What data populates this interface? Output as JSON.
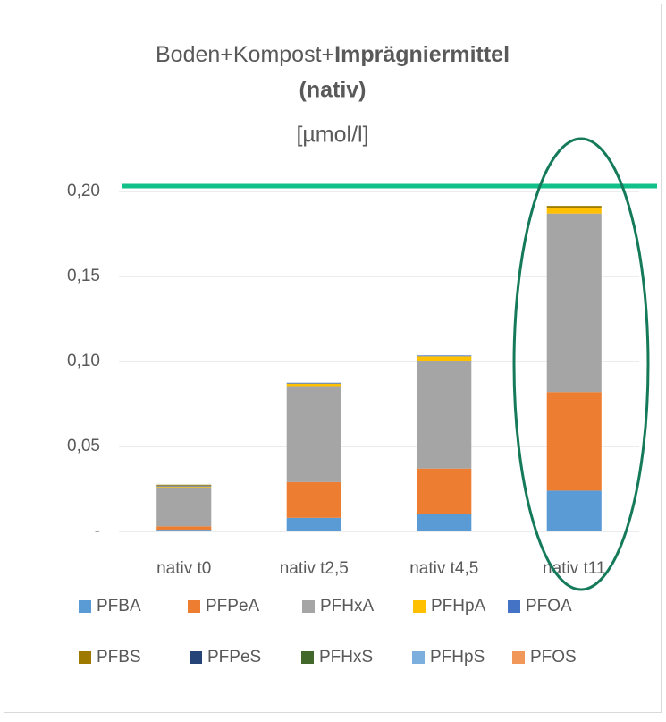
{
  "chart_data": {
    "type": "stacked_bar",
    "title": [
      "Boden+Kompost+",
      "Imprägniermittel",
      "(nativ)"
    ],
    "subtitle": "[µmol/l]",
    "categories": [
      "nativ t0",
      "nativ t2,5",
      "nativ t4,5",
      "nativ t11"
    ],
    "series": [
      {
        "name": "PFBA",
        "color": "#5b9bd5",
        "values": [
          0.001,
          0.008,
          0.01,
          0.024
        ]
      },
      {
        "name": "PFPeA",
        "color": "#ed7d31",
        "values": [
          0.002,
          0.021,
          0.027,
          0.058
        ]
      },
      {
        "name": "PFHxA",
        "color": "#a5a5a5",
        "values": [
          0.023,
          0.056,
          0.063,
          0.105
        ]
      },
      {
        "name": "PFHpA",
        "color": "#ffc000",
        "values": [
          0.0005,
          0.002,
          0.003,
          0.003
        ]
      },
      {
        "name": "PFOA",
        "color": "#4472c4",
        "values": [
          0.0005,
          0.0005,
          0.0005,
          0.0005
        ]
      },
      {
        "name": "PFBS",
        "color": "#9e7a00",
        "values": [
          0.0005,
          0,
          0,
          0.001
        ]
      },
      {
        "name": "PFPeS",
        "color": "#264478",
        "values": [
          0,
          0,
          0,
          0
        ]
      },
      {
        "name": "PFHxS",
        "color": "#43682b",
        "values": [
          0,
          0,
          0,
          0
        ]
      },
      {
        "name": "PFHpS",
        "color": "#7cafdd",
        "values": [
          0,
          0,
          0,
          0
        ]
      },
      {
        "name": "PFOS",
        "color": "#f1975a",
        "values": [
          0,
          0,
          0,
          0
        ]
      }
    ],
    "ylim": [
      0,
      0.2
    ],
    "yticks": [
      {
        "value": 0,
        "label": "-"
      },
      {
        "value": 0.05,
        "label": "0,05"
      },
      {
        "value": 0.1,
        "label": "0,10"
      },
      {
        "value": 0.15,
        "label": "0,15"
      },
      {
        "value": 0.2,
        "label": "0,20"
      }
    ],
    "grid": true
  }
}
